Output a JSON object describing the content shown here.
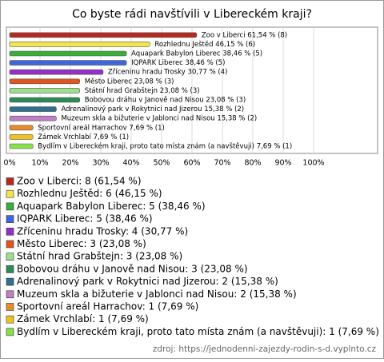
{
  "chart_data": {
    "type": "bar",
    "orientation": "horizontal",
    "title": "Co byste rádi navštívili v Libereckém kraji?",
    "categories": [
      "Zoo v Liberci",
      "Rozhlednu Ještěd",
      "Aquapark Babylon Liberec",
      "IQPARK Liberec",
      "Zříceninu hradu Trosky",
      "Město Liberec",
      "Státní hrad Grabštejn",
      "Bobovou dráhu v Janově nad Nisou",
      "Adrenalinový park v Rokytnici nad Jizerou",
      "Muzeum skla a bižuterie v Jablonci nad Nisou",
      "Sportovní areál Harrachov",
      "Zámek Vrchlabí",
      "Bydlím v Libereckém kraji, proto tato místa znám (a navštěvuji)"
    ],
    "values": [
      61.54,
      46.15,
      38.46,
      38.46,
      30.77,
      23.08,
      23.08,
      23.08,
      15.38,
      15.38,
      7.69,
      7.69,
      7.69
    ],
    "value_labels": [
      "Zoo v Liberci 61,54 % (8)",
      "Rozhlednu Ještěd 46,15 % (6)",
      "Aquapark Babylon Liberec 38,46 % (5)",
      "IQPARK Liberec 38,46 % (5)",
      "Zříceninu hradu Trosky 30,77 % (4)",
      "Město Liberec 23,08 % (3)",
      "Státní hrad Grabštejn 23,08 % (3)",
      "Bobovou dráhu v Janově nad Nisou 23,08 % (3)",
      "Adrenalinový park v Rokytnici nad Jizerou 15,38 % (2)",
      "Muzeum skla a bižuterie v Jablonci nad Nisou 15,38 % (2)",
      "Sportovní areál Harrachov 7,69 % (1)",
      "Zámek Vrchlabí 7,69 % (1)",
      "Bydlím v Libereckém kraji, proto tato místa znám (a navštěvuji) 7,69 % (1)"
    ],
    "legend_labels": [
      "Zoo v Liberci: 8 (61,54 %)",
      "Rozhlednu Ještěd: 6 (46,15 %)",
      "Aquapark Babylon Liberec: 5 (38,46 %)",
      "IQPARK Liberec: 5 (38,46 %)",
      "Zříceninu hradu Trosky: 4 (30,77 %)",
      "Město Liberec: 3 (23,08 %)",
      "Státní hrad Grabštejn: 3 (23,08 %)",
      "Bobovou dráhu v Janově nad Nisou: 3 (23,08 %)",
      "Adrenalinový park v Rokytnici nad Jizerou: 2 (15,38 %)",
      "Muzeum skla a bižuterie v Jablonci nad Nisou: 2 (15,38 %)",
      "Sportovní areál Harrachov: 1 (7,69 %)",
      "Zámek Vrchlabí: 1 (7,69 %)",
      "Bydlím v Libereckém kraji, proto tato místa znám (a navštěvuji): 1 (7,69 %)"
    ],
    "colors": [
      "#b8281e",
      "#f2e64a",
      "#3aae3a",
      "#3f66dd",
      "#9430c8",
      "#e25522",
      "#9be08e",
      "#2b8a55",
      "#2f6f8f",
      "#c07ec4",
      "#e88c2a",
      "#f0c21e",
      "#86e048"
    ],
    "xlim": [
      0,
      100
    ],
    "xticks": [
      {
        "value": 0,
        "label": "0%"
      },
      {
        "value": 10,
        "label": "10%"
      },
      {
        "value": 20,
        "label": "20%"
      },
      {
        "value": 30,
        "label": "30%"
      },
      {
        "value": 40,
        "label": "40%"
      },
      {
        "value": 50,
        "label": "50%"
      },
      {
        "value": 60,
        "label": "60%"
      },
      {
        "value": 70,
        "label": "70%"
      },
      {
        "value": 80,
        "label": "80%"
      },
      {
        "value": 90,
        "label": "90%"
      },
      {
        "value": 100,
        "label": "100%"
      }
    ],
    "grid": true,
    "source": "zdroj: https://jednodenni-zajezdy-rodin-s-d.vyplnto.cz"
  }
}
